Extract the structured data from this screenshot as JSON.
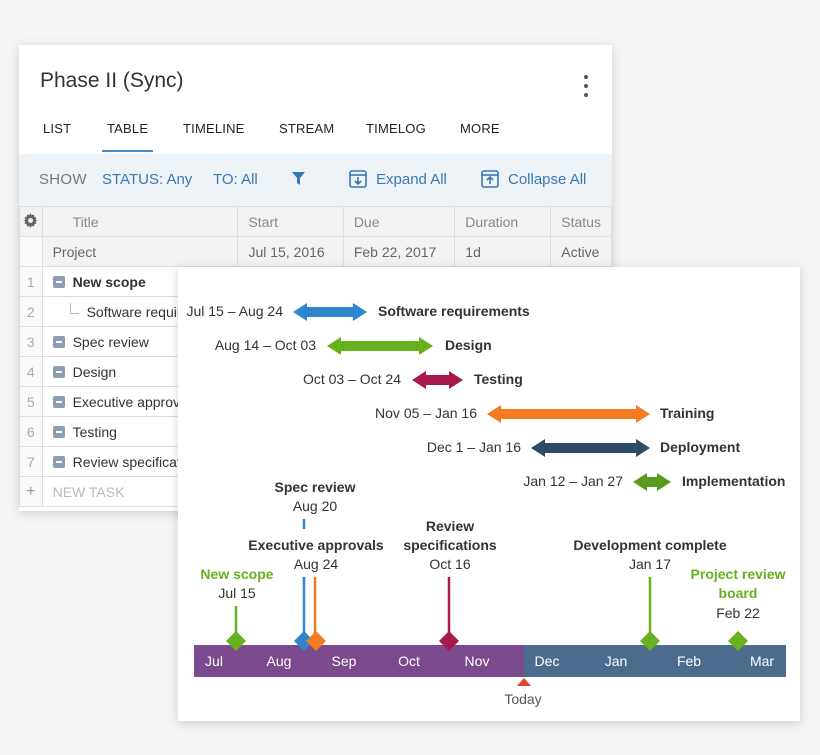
{
  "panel": {
    "title": "Phase II (Sync)"
  },
  "tabs": [
    {
      "label": "LIST"
    },
    {
      "label": "TABLE"
    },
    {
      "label": "TIMELINE"
    },
    {
      "label": "STREAM"
    },
    {
      "label": "TIMELOG"
    },
    {
      "label": "MORE"
    }
  ],
  "active_tab": "TABLE",
  "filter": {
    "show_label": "SHOW",
    "status": "STATUS: Any",
    "to": "TO: All",
    "expand": "Expand All",
    "collapse": "Collapse All"
  },
  "table": {
    "columns": [
      "Title",
      "Start",
      "Due",
      "Duration",
      "Status"
    ],
    "project": {
      "title": "Project",
      "start": "Jul 15, 2016",
      "due": "Feb 22, 2017",
      "duration": "1d",
      "status": "Active"
    },
    "rows": [
      {
        "num": "1",
        "title": "New scope"
      },
      {
        "num": "2",
        "title": "Software requirements"
      },
      {
        "num": "3",
        "title": "Spec review"
      },
      {
        "num": "4",
        "title": "Design"
      },
      {
        "num": "5",
        "title": "Executive approvals"
      },
      {
        "num": "6",
        "title": "Testing"
      },
      {
        "num": "7",
        "title": "Review specifications"
      }
    ],
    "add_symbol": "+",
    "new_task": "NEW TASK"
  },
  "timeline": {
    "months": [
      "Jul",
      "Aug",
      "Sep",
      "Oct",
      "Nov",
      "Dec",
      "Jan",
      "Feb",
      "Mar"
    ],
    "today_label": "Today",
    "tasks": [
      {
        "name": "Software requirements",
        "range": "Jul 15 – Aug 24",
        "color": "#2f86cf"
      },
      {
        "name": "Design",
        "range": "Aug 14 – Oct 03",
        "color": "#67b01e"
      },
      {
        "name": "Testing",
        "range": "Oct 03 – Oct 24",
        "color": "#a8194e"
      },
      {
        "name": "Training",
        "range": "Nov 05 – Jan 16",
        "color": "#f57b22"
      },
      {
        "name": "Deployment",
        "range": "Dec 1 – Jan 16",
        "color": "#2f4b65"
      },
      {
        "name": "Implementation",
        "range": "Jan 12 – Jan 27",
        "color": "#5a9a1c"
      }
    ],
    "milestones": [
      {
        "name": "New scope",
        "date": "Jul 15",
        "color": "#67b01e"
      },
      {
        "name": "Spec review",
        "date": "Aug 20",
        "color": "#2f86cf"
      },
      {
        "name": "Executive approvals",
        "date": "Aug 24",
        "color": "#f57b22"
      },
      {
        "name": "Review specifications",
        "date": "Oct 16",
        "color": "#a8194e"
      },
      {
        "name": "Development complete",
        "date": "Jan 17",
        "color": "#67b01e"
      },
      {
        "name": "Project review board",
        "date": "Feb 22",
        "color": "#67b01e"
      }
    ],
    "axis_colors": {
      "past": "#7b4a8e",
      "future": "#4c6c8e",
      "today": "#e0432f"
    }
  }
}
